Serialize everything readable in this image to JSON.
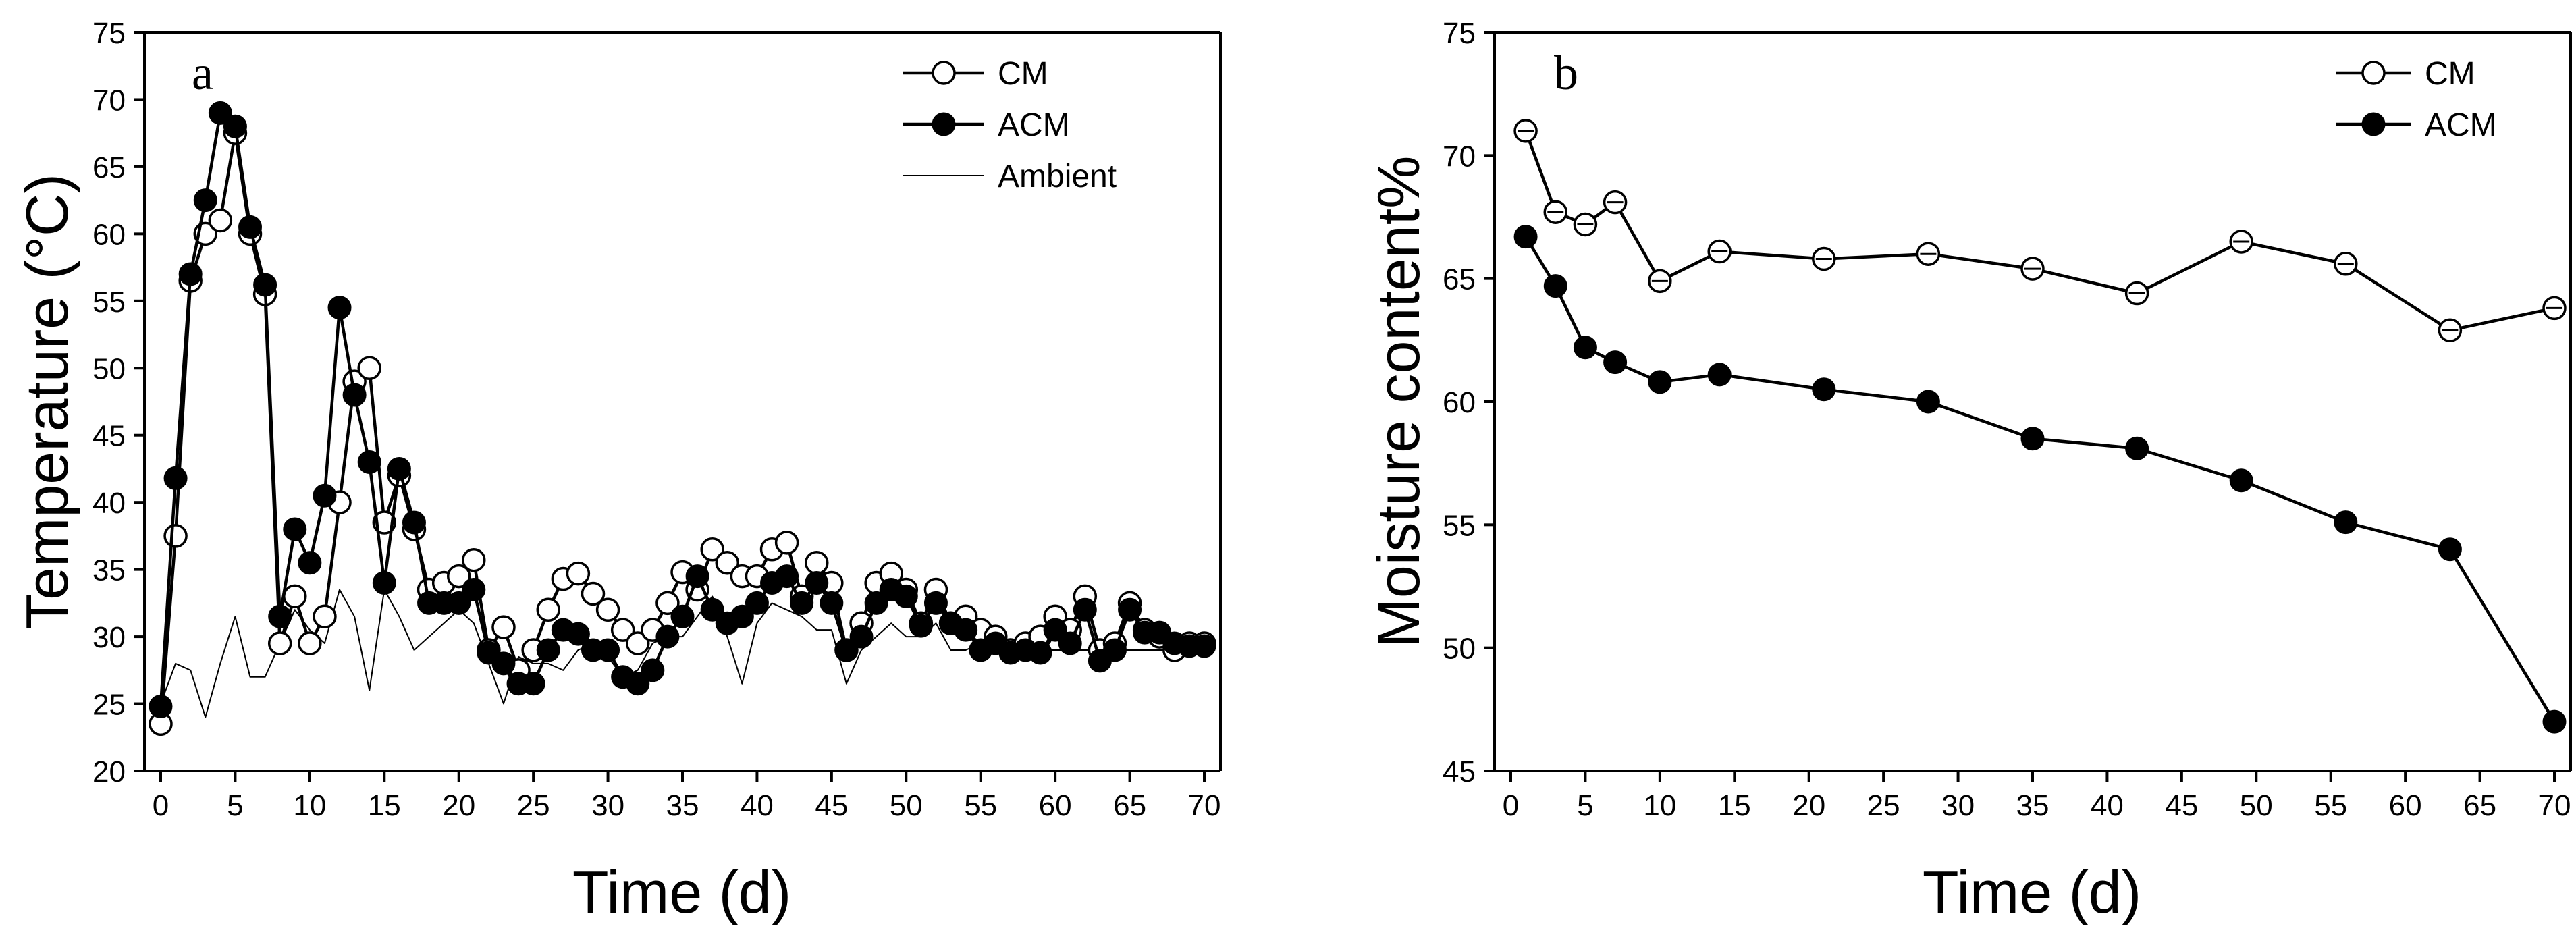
{
  "chart_data": [
    {
      "type": "line",
      "panel": "a",
      "title": "",
      "xlabel": "Time (d)",
      "ylabel": "Temperature (°C)",
      "xlim": [
        0,
        70
      ],
      "ylim": [
        20,
        75
      ],
      "xticks": [
        0,
        5,
        10,
        15,
        20,
        25,
        30,
        35,
        40,
        45,
        50,
        55,
        60,
        65,
        70
      ],
      "yticks": [
        20,
        25,
        30,
        35,
        40,
        45,
        50,
        55,
        60,
        65,
        70,
        75
      ],
      "legend_position": "top-right",
      "series": [
        {
          "name": "CM",
          "marker": "open-circle",
          "x": [
            0,
            1,
            2,
            3,
            4,
            5,
            6,
            7,
            8,
            9,
            10,
            11,
            12,
            13,
            14,
            15,
            16,
            17,
            18,
            19,
            20,
            21,
            22,
            23,
            24,
            25,
            26,
            27,
            28,
            29,
            30,
            31,
            32,
            33,
            34,
            35,
            36,
            37,
            38,
            39,
            40,
            41,
            42,
            43,
            44,
            45,
            46,
            47,
            48,
            49,
            50,
            51,
            52,
            53,
            54,
            55,
            56,
            57,
            58,
            59,
            60,
            61,
            62,
            63,
            64,
            65,
            66,
            67,
            68,
            69,
            70
          ],
          "y": [
            23.5,
            37.5,
            56.5,
            60,
            61,
            67.5,
            60,
            55.5,
            29.5,
            33,
            29.5,
            31.5,
            40,
            49,
            50,
            38.5,
            42,
            38,
            33.5,
            34,
            34.5,
            35.7,
            29,
            30.7,
            27.5,
            29,
            32,
            34.3,
            34.7,
            33.2,
            32,
            30.5,
            29.5,
            30.5,
            32.5,
            34.8,
            33.5,
            36.5,
            35.5,
            34.5,
            34.5,
            36.5,
            37,
            33,
            35.5,
            34,
            29,
            31,
            34,
            34.7,
            33.5,
            31,
            33.5,
            31,
            31.5,
            30.5,
            30,
            29,
            29.5,
            30,
            31.5,
            30.5,
            33,
            29,
            29.5,
            32.5,
            30.5,
            30,
            29,
            29.5,
            29.5
          ]
        },
        {
          "name": "ACM",
          "marker": "filled-circle",
          "x": [
            0,
            1,
            2,
            3,
            4,
            5,
            6,
            7,
            8,
            9,
            10,
            11,
            12,
            13,
            14,
            15,
            16,
            17,
            18,
            19,
            20,
            21,
            22,
            23,
            24,
            25,
            26,
            27,
            28,
            29,
            30,
            31,
            32,
            33,
            34,
            35,
            36,
            37,
            38,
            39,
            40,
            41,
            42,
            43,
            44,
            45,
            46,
            47,
            48,
            49,
            50,
            51,
            52,
            53,
            54,
            55,
            56,
            57,
            58,
            59,
            60,
            61,
            62,
            63,
            64,
            65,
            66,
            67,
            68,
            69,
            70
          ],
          "y": [
            24.8,
            41.8,
            57,
            62.5,
            69,
            68,
            60.5,
            56.2,
            31.5,
            38,
            35.5,
            40.5,
            54.5,
            48,
            43,
            34,
            42.5,
            38.5,
            32.5,
            32.5,
            32.5,
            33.5,
            28.8,
            28,
            26.5,
            26.5,
            29,
            30.5,
            30.2,
            29,
            29,
            27,
            26.5,
            27.5,
            30,
            31.5,
            34.5,
            32,
            31,
            31.5,
            32.5,
            34,
            34.5,
            32.5,
            34,
            32.5,
            29,
            30,
            32.5,
            33.5,
            33,
            30.8,
            32.5,
            31,
            30.5,
            29,
            29.5,
            28.8,
            29,
            28.8,
            30.5,
            29.5,
            32,
            28.2,
            29,
            32,
            30.3,
            30.3,
            29.5,
            29.3,
            29.3
          ]
        },
        {
          "name": "Ambient",
          "marker": "none",
          "x": [
            0,
            1,
            2,
            3,
            4,
            5,
            6,
            7,
            8,
            9,
            10,
            11,
            12,
            13,
            14,
            15,
            16,
            17,
            18,
            19,
            20,
            21,
            22,
            23,
            24,
            25,
            26,
            27,
            28,
            29,
            30,
            31,
            32,
            33,
            34,
            35,
            36,
            37,
            38,
            39,
            40,
            41,
            42,
            43,
            44,
            45,
            46,
            47,
            48,
            49,
            50,
            51,
            52,
            53,
            54,
            55,
            56,
            57,
            58,
            59,
            60,
            61,
            62,
            63,
            64,
            65,
            66,
            67,
            68,
            69,
            70
          ],
          "y": [
            25,
            28,
            27.5,
            24,
            28,
            31.5,
            27,
            27,
            29.5,
            32,
            30.5,
            29.5,
            33.5,
            31.5,
            26,
            33.5,
            31.5,
            29,
            30,
            31,
            32,
            31,
            28,
            25,
            28.5,
            28,
            28,
            27.5,
            29,
            29.5,
            28.5,
            27,
            27.5,
            29.5,
            30,
            30,
            31.5,
            33,
            30,
            26.5,
            31,
            32.5,
            32,
            31.5,
            30.5,
            30.5,
            26.5,
            29,
            30,
            31,
            30,
            30,
            31,
            29,
            29,
            29.5,
            29,
            29,
            29,
            29,
            29,
            29,
            29,
            29,
            29,
            29,
            29,
            29,
            29,
            29,
            29
          ]
        }
      ]
    },
    {
      "type": "line",
      "panel": "b",
      "title": "",
      "xlabel": "Time (d)",
      "ylabel": "Moisture content%",
      "xlim": [
        0,
        70
      ],
      "ylim": [
        45,
        75
      ],
      "xticks": [
        0,
        5,
        10,
        15,
        20,
        25,
        30,
        35,
        40,
        45,
        50,
        55,
        60,
        65,
        70
      ],
      "yticks": [
        45,
        50,
        55,
        60,
        65,
        70,
        75
      ],
      "legend_position": "top-right",
      "series": [
        {
          "name": "CM",
          "marker": "open-circle-with-errorbar",
          "x": [
            1,
            3,
            5,
            7,
            10,
            14,
            21,
            28,
            35,
            42,
            49,
            56,
            63,
            70
          ],
          "y": [
            71,
            67.7,
            67.2,
            68.1,
            64.9,
            66.1,
            65.8,
            66,
            65.4,
            64.4,
            66.5,
            65.6,
            62.9,
            63.8
          ]
        },
        {
          "name": "ACM",
          "marker": "filled-circle",
          "x": [
            1,
            3,
            5,
            7,
            10,
            14,
            21,
            28,
            35,
            42,
            49,
            56,
            63,
            70
          ],
          "y": [
            66.7,
            64.7,
            62.2,
            61.6,
            60.8,
            61.1,
            60.5,
            60,
            58.5,
            58.1,
            56.8,
            55.1,
            54,
            47
          ]
        }
      ]
    }
  ]
}
